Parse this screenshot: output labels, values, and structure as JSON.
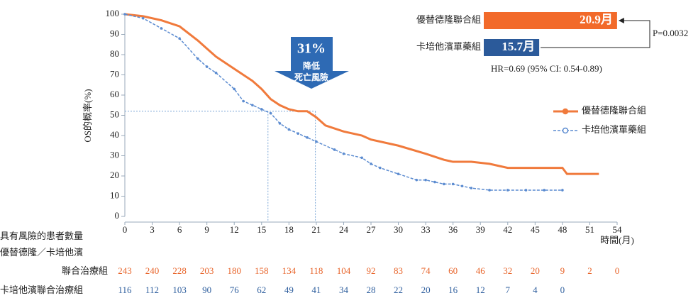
{
  "chart_data": {
    "type": "line",
    "ylabel": "OS的概率(%)",
    "xlabel": "時間(月)",
    "xlim": [
      0,
      54
    ],
    "xticks": [
      0,
      3,
      6,
      9,
      12,
      15,
      18,
      21,
      24,
      27,
      30,
      33,
      36,
      39,
      42,
      45,
      48,
      51,
      54
    ],
    "ylim": [
      0,
      100
    ],
    "yticks": [
      0,
      10,
      20,
      30,
      40,
      50,
      60,
      70,
      80,
      90,
      100
    ],
    "legend": "right",
    "series": [
      {
        "name": "優替德隆聯合組",
        "color": "#f07a3c",
        "x": [
          0,
          2,
          4,
          6,
          8,
          9,
          10,
          12,
          14,
          15,
          16,
          17,
          18,
          19,
          20,
          21,
          22,
          24,
          26,
          27,
          30,
          33,
          35,
          36,
          38,
          40,
          41,
          42,
          48,
          48.5,
          52
        ],
        "values": [
          100,
          99,
          97,
          94,
          87,
          83,
          79,
          73,
          67,
          63,
          58,
          55,
          53,
          52,
          52,
          49,
          45,
          42,
          40,
          38,
          35,
          31,
          28,
          27,
          27,
          26,
          25,
          24,
          24,
          21,
          21
        ]
      },
      {
        "name": "卡培他濱單藥組",
        "color": "#5b8bd0",
        "x": [
          0,
          2,
          4,
          6,
          8,
          9,
          10,
          12,
          13,
          14,
          15,
          16,
          17,
          18,
          19,
          20,
          21,
          23,
          24,
          26,
          27,
          28,
          30,
          32,
          33,
          34,
          35,
          36,
          37,
          38,
          40,
          42,
          44,
          46,
          48
        ],
        "values": [
          100,
          98,
          93,
          88,
          78,
          74,
          71,
          63,
          57,
          55,
          53,
          51,
          46,
          43,
          41,
          39,
          37,
          33,
          31,
          29,
          26,
          24,
          21,
          18,
          18,
          17,
          16,
          16,
          15,
          14,
          13,
          13,
          13,
          13,
          13
        ]
      }
    ],
    "median_line": {
      "y": 52,
      "x": [
        15.7,
        20.9
      ]
    },
    "annotation": {
      "reduction": "31%",
      "line1": "降低",
      "line2": "死亡風險"
    },
    "median_bars": {
      "xlim": [
        12,
        21
      ],
      "bars": [
        {
          "name": "優替德隆聯合組",
          "value": 20.9,
          "label": "20.9月",
          "color": "#f26a2a"
        },
        {
          "name": "卡培他濱單藥組",
          "value": 15.7,
          "label": "15.7月",
          "color": "#2b5a9a"
        }
      ],
      "p_value": "P=0.0032",
      "hr": "HR=0.69 (95% CI: 0.54-0.89)"
    },
    "risk_table": {
      "title": "具有風險的患者數量",
      "subtitle": "優替德隆／卡培他濱",
      "rows": [
        {
          "label": "聯合治療組",
          "values": [
            243,
            240,
            228,
            203,
            180,
            158,
            134,
            118,
            104,
            92,
            83,
            74,
            60,
            46,
            32,
            20,
            9,
            2,
            0
          ]
        },
        {
          "label": "卡培他濱聯合治療組",
          "values": [
            116,
            112,
            103,
            90,
            76,
            62,
            49,
            41,
            34,
            28,
            22,
            20,
            16,
            12,
            7,
            4,
            0
          ]
        }
      ]
    }
  }
}
